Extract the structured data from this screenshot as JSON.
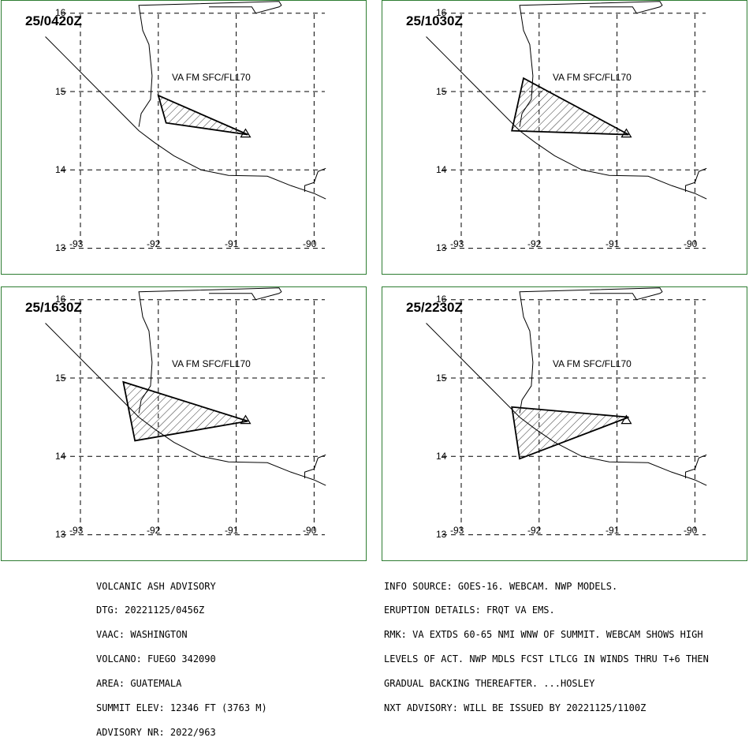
{
  "panels": [
    {
      "time": "25/0420Z",
      "polygon": [
        [
          -92.0,
          14.95
        ],
        [
          -91.9,
          14.6
        ],
        [
          -90.85,
          14.45
        ]
      ]
    },
    {
      "time": "25/1030Z",
      "polygon": [
        [
          -92.2,
          15.17
        ],
        [
          -92.35,
          14.5
        ],
        [
          -90.85,
          14.45
        ]
      ]
    },
    {
      "time": "25/1630Z",
      "polygon": [
        [
          -92.45,
          14.95
        ],
        [
          -92.3,
          14.2
        ],
        [
          -90.85,
          14.45
        ]
      ]
    },
    {
      "time": "25/2230Z",
      "polygon": [
        [
          -92.35,
          14.63
        ],
        [
          -92.25,
          13.97
        ],
        [
          -90.85,
          14.5
        ]
      ]
    }
  ],
  "va_label": "VA FM SFC/FL170",
  "lat_labels": [
    "16",
    "15",
    "14",
    "13"
  ],
  "lon_labels": [
    "-93",
    "-92",
    "-91",
    "-90"
  ],
  "left_info": [
    "VOLCANIC ASH ADVISORY",
    "DTG: 20221125/0456Z",
    "VAAC: WASHINGTON",
    "VOLCANO: FUEGO 342090",
    "AREA: GUATEMALA",
    "SUMMIT ELEV: 12346 FT (3763 M)",
    "ADVISORY NR: 2022/963"
  ],
  "right_info": [
    "INFO SOURCE: GOES-16. WEBCAM. NWP MODELS.",
    "ERUPTION DETAILS: FRQT VA EMS.",
    "RMK: VA EXTDS 60-65 NMI WNW OF SUMMIT. WEBCAM SHOWS HIGH",
    "LEVELS OF ACT. NWP MDLS FCST LTLCG IN WINDS THRU T+6 THEN",
    "GRADUAL BACKING THEREAFTER. ...HOSLEY",
    "NXT ADVISORY: WILL BE ISSUED BY 20221125/1100Z"
  ]
}
